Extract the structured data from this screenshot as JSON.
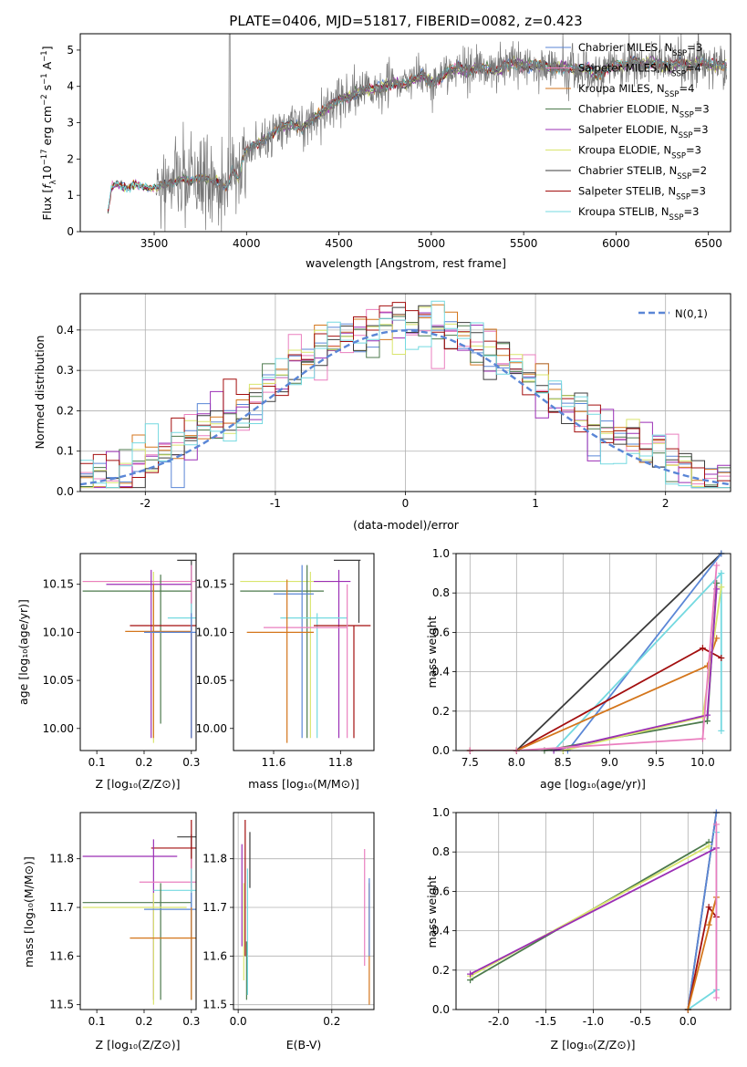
{
  "colors": {
    "Chabrier MILES": "#5a86d6",
    "Salpeter MILES": "#ea7fbf",
    "Kroupa MILES": "#d4761c",
    "Chabrier ELODIE": "#4c7a4c",
    "Salpeter ELODIE": "#9b2fb5",
    "Kroupa ELODIE": "#d9e56d",
    "Chabrier STELIB": "#3c3c3c",
    "Salpeter STELIB": "#a30f0f",
    "Kroupa STELIB": "#74d9e0",
    "data": "#777777",
    "normal": "#5a86d6"
  },
  "chart_data": [
    {
      "type": "line",
      "title": "PLATE=0406, MJD=51817, FIBERID=0082, z=0.423",
      "xlabel": "wavelength [Angstrom, rest frame]",
      "ylabel": "Flux [f_λ 10^-17 erg cm^-2 s^-1 A^-1]",
      "xlim": [
        3100,
        6620
      ],
      "ylim": [
        0,
        5.45
      ],
      "xticks": [
        3500,
        4000,
        4500,
        5000,
        5500,
        6000,
        6500
      ],
      "yticks": [
        0,
        1,
        2,
        3,
        4,
        5
      ],
      "continuum": {
        "x": [
          3250,
          3270,
          3300,
          3350,
          3400,
          3450,
          3500,
          3550,
          3600,
          3650,
          3700,
          3750,
          3800,
          3850,
          3900,
          3920,
          3940,
          3960,
          3980,
          4000,
          4050,
          4100,
          4150,
          4200,
          4250,
          4300,
          4350,
          4400,
          4450,
          4500,
          4550,
          4600,
          4650,
          4700,
          4750,
          4800,
          4850,
          4900,
          4950,
          5000,
          5050,
          5100,
          5150,
          5200,
          5250,
          5300,
          5350,
          5400,
          5450,
          5500,
          5550,
          5600,
          5650,
          5700,
          5750,
          5800,
          5850,
          5900,
          5950,
          6000,
          6050,
          6100,
          6150,
          6200,
          6250,
          6300,
          6350,
          6400,
          6450,
          6500,
          6550,
          6600
        ],
        "y": [
          0.55,
          1.25,
          1.3,
          1.2,
          1.3,
          1.22,
          1.18,
          1.3,
          1.35,
          1.45,
          1.4,
          1.5,
          1.42,
          1.35,
          1.2,
          1.7,
          1.55,
          1.45,
          2.0,
          2.25,
          2.4,
          2.55,
          2.75,
          2.9,
          2.95,
          2.85,
          3.05,
          3.25,
          3.45,
          3.65,
          3.7,
          3.85,
          3.9,
          3.95,
          4.0,
          4.1,
          4.05,
          4.15,
          4.3,
          4.1,
          4.25,
          4.45,
          4.5,
          4.4,
          4.55,
          4.5,
          4.4,
          4.55,
          4.65,
          4.55,
          4.6,
          4.55,
          4.5,
          4.55,
          4.5,
          4.45,
          4.5,
          4.3,
          4.5,
          4.6,
          4.55,
          4.7,
          4.6,
          4.65,
          4.6,
          4.55,
          4.65,
          4.6,
          4.7,
          4.6,
          4.55,
          4.6
        ]
      },
      "data_range": [
        3510,
        6600
      ],
      "legend": [
        {
          "label": "Chabrier MILES",
          "nssp": "3"
        },
        {
          "label": "Salpeter MILES",
          "nssp": "4"
        },
        {
          "label": "Kroupa MILES",
          "nssp": "4"
        },
        {
          "label": "Chabrier ELODIE",
          "nssp": "3"
        },
        {
          "label": "Salpeter ELODIE",
          "nssp": "3"
        },
        {
          "label": "Kroupa ELODIE",
          "nssp": "3"
        },
        {
          "label": "Chabrier STELIB",
          "nssp": "2"
        },
        {
          "label": "Salpeter STELIB",
          "nssp": "3"
        },
        {
          "label": "Kroupa STELIB",
          "nssp": "3"
        }
      ],
      "legend_placement": "top-right"
    },
    {
      "type": "area",
      "xlabel": "(data-model)/error",
      "ylabel": "Normed distribution",
      "xlim": [
        -2.5,
        2.5
      ],
      "ylim": [
        0,
        0.49
      ],
      "xticks": [
        -2,
        -1,
        0,
        1,
        2
      ],
      "yticks": [
        0.0,
        0.1,
        0.2,
        0.3,
        0.4
      ],
      "grid": true,
      "bin_edges_range": [
        -2.5,
        2.5
      ],
      "nbins": 50,
      "normal_label": "N(0,1)",
      "legend_placement": "top-right"
    },
    {
      "type": "scatter",
      "xlabel": "Z [log10(Z/Z⊙)]",
      "ylabel": "age  [log10(age/yr)]",
      "xlim": [
        0.065,
        0.31
      ],
      "ylim": [
        9.977,
        10.182
      ],
      "xticks": [
        0.1,
        0.2,
        0.3
      ],
      "yticks": [
        10.0,
        10.05,
        10.1,
        10.15
      ]
    },
    {
      "type": "scatter",
      "xlabel": "mass [log10(M/M⊙)]",
      "ylim": [
        9.977,
        10.182
      ],
      "xlim": [
        11.48,
        11.9
      ],
      "xticks": [
        11.6,
        11.8
      ],
      "yticks": [
        10.0,
        10.05,
        10.1,
        10.15
      ]
    },
    {
      "type": "line",
      "xlabel": "age  [log10(age/yr)]",
      "ylabel": "mass weight",
      "xlim": [
        7.35,
        10.3
      ],
      "ylim": [
        0,
        1.0
      ],
      "xticks": [
        7.5,
        8.0,
        8.5,
        9.0,
        9.5,
        10.0
      ],
      "yticks": [
        0.0,
        0.2,
        0.4,
        0.6,
        0.8,
        1.0
      ],
      "grid": true
    },
    {
      "type": "scatter",
      "xlabel": "Z [log10(Z/Z⊙)]",
      "ylabel": "mass [log10(M/M⊙)]",
      "xlim": [
        0.065,
        0.31
      ],
      "ylim": [
        11.49,
        11.895
      ],
      "xticks": [
        0.1,
        0.2,
        0.3
      ],
      "yticks": [
        11.5,
        11.6,
        11.7,
        11.8
      ]
    },
    {
      "type": "scatter",
      "xlabel": "E(B-V)",
      "xlim": [
        -0.01,
        0.29
      ],
      "ylim": [
        11.49,
        11.895
      ],
      "xticks": [
        0.0,
        0.2
      ],
      "yticks": [
        11.5,
        11.6,
        11.7,
        11.8
      ],
      "grid": true
    },
    {
      "type": "line",
      "xlabel": "Z [log10(Z/Z⊙)]",
      "ylabel": "mass weight",
      "xlim": [
        -2.45,
        0.45
      ],
      "ylim": [
        0,
        1.0
      ],
      "xticks": [
        -2.0,
        -1.5,
        -1.0,
        -0.5,
        0.0
      ],
      "yticks": [
        0.0,
        0.2,
        0.4,
        0.6,
        0.8,
        1.0
      ],
      "grid": true
    }
  ]
}
